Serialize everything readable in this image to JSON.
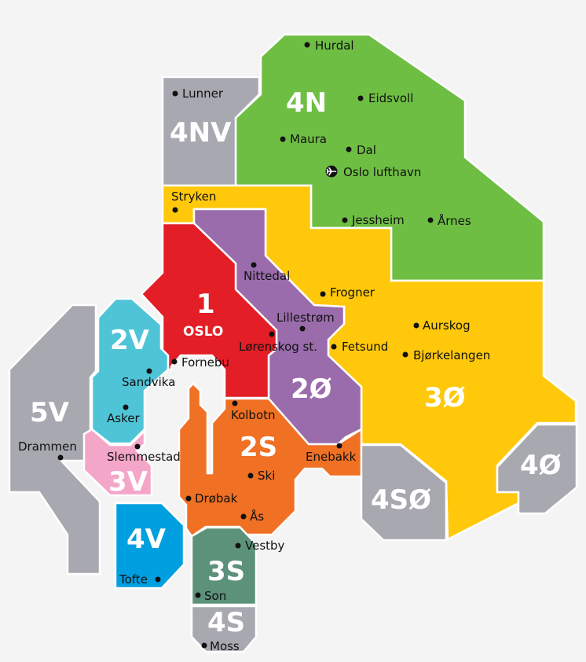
{
  "colors": {
    "background": "#f4f4f4",
    "zone_4N": "#6fbe44",
    "zone_4NV": "#a8a8b1",
    "zone_3O": "#ffc80b",
    "zone_1": "#e31e26",
    "zone_2O": "#9a6cab",
    "zone_2V": "#50c4d7",
    "zone_5V": "#a8a8b1",
    "zone_3V": "#f4a6c9",
    "zone_4V": "#009fe0",
    "zone_2S": "#f07024",
    "zone_3S": "#5c917a",
    "zone_4S": "#a8a8b1",
    "zone_4SO": "#a8a8b1",
    "zone_4O": "#a8a8b1"
  },
  "zones": {
    "z4N": "4N",
    "z4NV": "4NV",
    "z3O": "3Ø",
    "z1": "1",
    "z1_name": "OSLO",
    "z2O": "2Ø",
    "z2V": "2V",
    "z5V": "5V",
    "z3V": "3V",
    "z4V": "4V",
    "z2S": "2S",
    "z3S": "3S",
    "z4S": "4S",
    "z4SO": "4SØ",
    "z4O": "4Ø"
  },
  "places": {
    "hurdal": "Hurdal",
    "lunner": "Lunner",
    "eidsvoll": "Eidsvoll",
    "maura": "Maura",
    "dal": "Dal",
    "airport": "Oslo lufthavn",
    "airport_icon": "airplane-icon",
    "stryken": "Stryken",
    "jessheim": "Jessheim",
    "arnes": "Årnes",
    "nittedal": "Nittedal",
    "frogner": "Frogner",
    "lillestrom": "Lillestrøm",
    "aurskog": "Aurskog",
    "lorenskog": "Lørenskog st.",
    "fetsund": "Fetsund",
    "bjorkelangen": "Bjørkelangen",
    "fornebu": "Fornebu",
    "sandvika": "Sandvika",
    "asker": "Asker",
    "kolbotn": "Kolbotn",
    "drammen": "Drammen",
    "slemmestad": "Slemmestad",
    "enebakk": "Enebakk",
    "ski": "Ski",
    "drobak": "Drøbak",
    "as": "Ås",
    "vestby": "Vestby",
    "tofte": "Tofte",
    "son": "Son",
    "moss": "Moss"
  }
}
